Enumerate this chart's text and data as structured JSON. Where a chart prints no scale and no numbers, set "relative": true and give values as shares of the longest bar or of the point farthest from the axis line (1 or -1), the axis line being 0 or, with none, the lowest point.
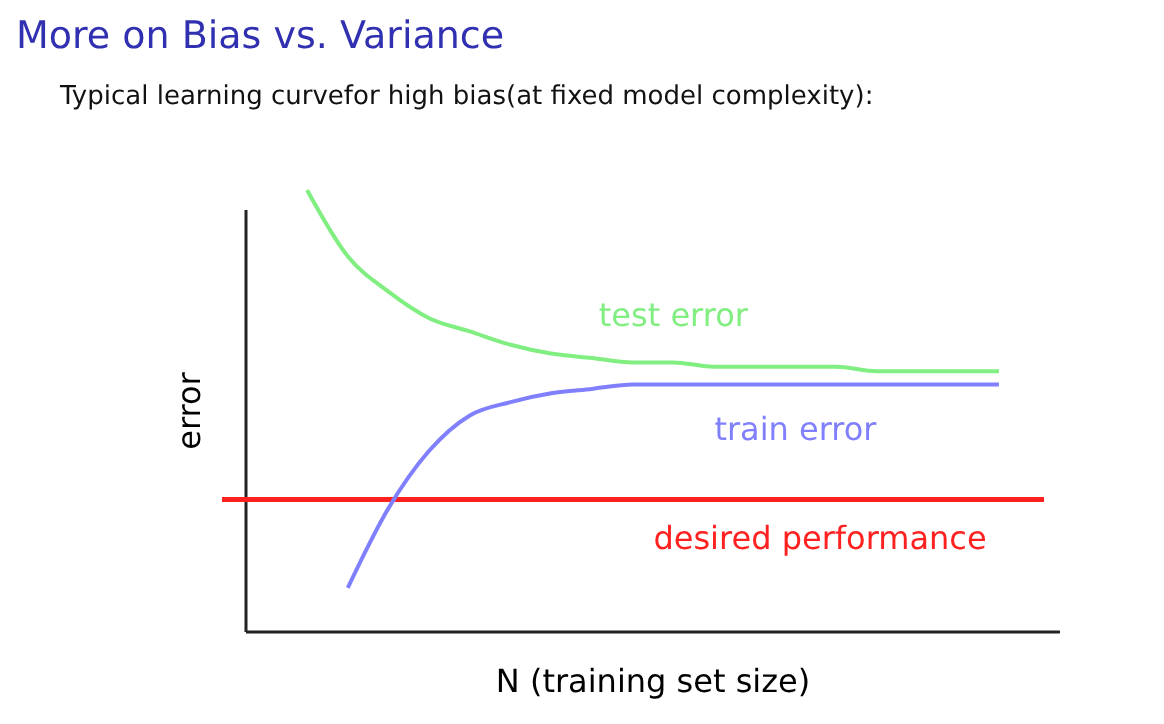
{
  "chart_data": {
    "type": "line",
    "title": "More on Bias vs. Variance",
    "subtitle": "Typical learning curvefor high bias(at fixed model complexity):",
    "xlabel": "N (training set size)",
    "ylabel": "error",
    "relative": true,
    "legend": false,
    "marker": "none",
    "categories": [
      null,
      null,
      null,
      null,
      null,
      null,
      null,
      null,
      null,
      null,
      null,
      null,
      null,
      null,
      null,
      null,
      null,
      null,
      null,
      null
    ],
    "series": [
      {
        "name": "test error",
        "color": "#80ee80",
        "values": [
          null,
          1,
          0.85,
          0.77,
          0.71,
          0.68,
          0.65,
          0.63,
          0.62,
          0.61,
          0.61,
          0.6,
          0.6,
          0.6,
          0.6,
          0.59,
          0.59,
          0.59,
          0.59,
          null
        ]
      },
      {
        "name": "train error",
        "color": "#8080ff",
        "values": [
          null,
          null,
          0.1,
          0.28,
          0.41,
          0.49,
          0.52,
          0.54,
          0.55,
          0.56,
          0.56,
          0.56,
          0.56,
          0.56,
          0.56,
          0.56,
          0.56,
          0.56,
          0.56,
          null
        ]
      }
    ],
    "ref_lines": [
      {
        "axis": "y",
        "value": 0.3,
        "label": "desired performance",
        "color": "#ff2020"
      }
    ]
  }
}
